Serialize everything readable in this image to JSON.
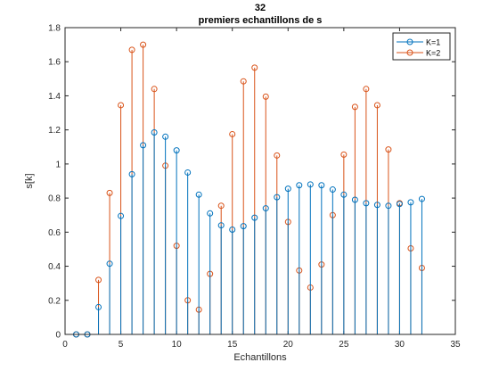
{
  "chart_data": {
    "type": "stem",
    "title": "32",
    "subtitle": "premiers echantillons de s",
    "xlabel": "Echantillons",
    "ylabel": "s[k]",
    "xlim": [
      0,
      35
    ],
    "ylim": [
      0,
      1.8
    ],
    "xticks": [
      0,
      5,
      10,
      15,
      20,
      25,
      30,
      35
    ],
    "yticks": [
      0,
      0.2,
      0.4,
      0.6,
      0.8,
      1,
      1.2,
      1.4,
      1.6,
      1.8
    ],
    "grid": false,
    "legend_position": "top-right",
    "series": [
      {
        "name": "K=1",
        "color": "#0072BD",
        "x": [
          1,
          2,
          3,
          4,
          5,
          6,
          7,
          8,
          9,
          10,
          11,
          12,
          13,
          14,
          15,
          16,
          17,
          18,
          19,
          20,
          21,
          22,
          23,
          24,
          25,
          26,
          27,
          28,
          29,
          30,
          31,
          32
        ],
        "values": [
          0,
          0,
          0.16,
          0.415,
          0.695,
          0.94,
          1.11,
          1.185,
          1.16,
          1.08,
          0.95,
          0.82,
          0.71,
          0.64,
          0.615,
          0.635,
          0.685,
          0.74,
          0.805,
          0.855,
          0.875,
          0.88,
          0.875,
          0.85,
          0.82,
          0.79,
          0.77,
          0.76,
          0.755,
          0.765,
          0.775,
          0.795
        ]
      },
      {
        "name": "K=2",
        "color": "#D95319",
        "x": [
          1,
          2,
          3,
          4,
          5,
          6,
          7,
          8,
          9,
          10,
          11,
          12,
          13,
          14,
          15,
          16,
          17,
          18,
          19,
          20,
          21,
          22,
          23,
          24,
          25,
          26,
          27,
          28,
          29,
          30,
          31,
          32
        ],
        "values": [
          0,
          0,
          0.32,
          0.83,
          1.345,
          1.67,
          1.7,
          1.44,
          0.99,
          0.52,
          0.2,
          0.145,
          0.355,
          0.755,
          1.175,
          1.485,
          1.565,
          1.395,
          1.05,
          0.66,
          0.375,
          0.275,
          0.41,
          0.7,
          1.055,
          1.335,
          1.44,
          1.345,
          1.085,
          0.77,
          0.505,
          0.39
        ]
      }
    ]
  }
}
